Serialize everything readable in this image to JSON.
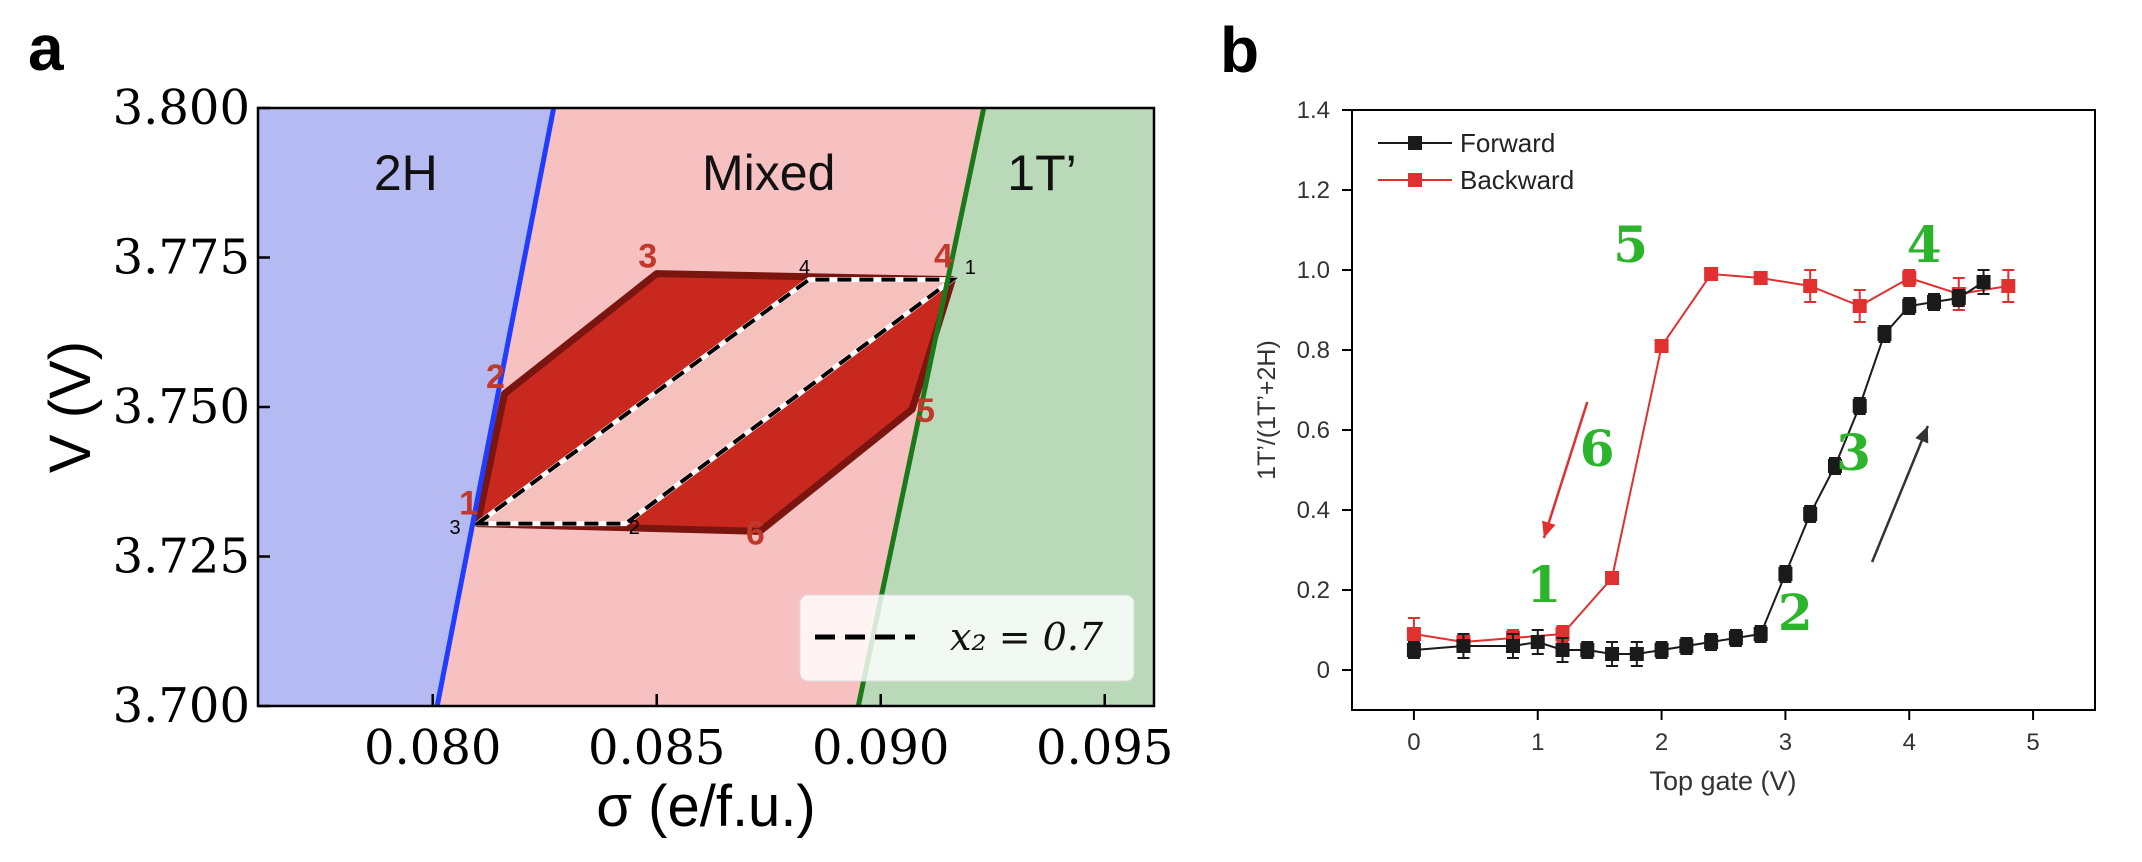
{
  "figure": {
    "panel_a_letter": "a",
    "panel_b_letter": "b"
  },
  "chart_data": [
    {
      "type": "area",
      "panel": "a",
      "xlabel": "σ (e/f.u.)",
      "ylabel": "V (V)",
      "xlim": [
        0.0761,
        0.0961
      ],
      "ylim": [
        3.7,
        3.8
      ],
      "x_ticks": [
        0.08,
        0.085,
        0.09,
        0.095
      ],
      "x_tick_labels": [
        "0.080",
        "0.085",
        "0.090",
        "0.095"
      ],
      "y_ticks": [
        3.7,
        3.725,
        3.75,
        3.775,
        3.8
      ],
      "y_tick_labels": [
        "3.700",
        "3.725",
        "3.750",
        "3.775",
        "3.800"
      ],
      "regions": [
        {
          "name": "2H",
          "color": "#b5baf2"
        },
        {
          "name": "Mixed",
          "color": "#f8c1c1"
        },
        {
          "name": "1T’",
          "color": "#b9d9b8"
        }
      ],
      "boundaries": [
        {
          "color": "#1f3cff",
          "points": [
            [
              0.0801,
              3.7
            ],
            [
              0.0827,
              3.8
            ]
          ]
        },
        {
          "color": "#1a7a1a",
          "points": [
            [
              0.0895,
              3.7
            ],
            [
              0.0923,
              3.8
            ]
          ]
        }
      ],
      "loop": {
        "fill": "#c8281e",
        "edge": "#7a1510",
        "outer": [
          [
            0.081,
            3.7305
          ],
          [
            0.0816,
            3.7522
          ],
          [
            0.085,
            3.7723
          ],
          [
            0.0916,
            3.7713
          ],
          [
            0.0907,
            3.7496
          ],
          [
            0.0873,
            3.7292
          ]
        ],
        "inner_dashed": [
          [
            0.081,
            3.7305
          ],
          [
            0.0884,
            3.7713
          ],
          [
            0.0916,
            3.7713
          ],
          [
            0.0843,
            3.7305
          ]
        ]
      },
      "point_labels": [
        {
          "text": "1",
          "x": 0.0808,
          "y": 3.732
        },
        {
          "text": "2",
          "x": 0.0814,
          "y": 3.7532
        },
        {
          "text": "3",
          "x": 0.0848,
          "y": 3.7733
        },
        {
          "text": "4",
          "x": 0.0914,
          "y": 3.7733
        },
        {
          "text": "5",
          "x": 0.091,
          "y": 3.7475
        },
        {
          "text": "6",
          "x": 0.0872,
          "y": 3.727
        }
      ],
      "small_labels": [
        {
          "text": "1",
          "x": 0.092,
          "y": 3.7722
        },
        {
          "text": "2",
          "x": 0.0845,
          "y": 3.7288
        },
        {
          "text": "3",
          "x": 0.0805,
          "y": 3.7288
        },
        {
          "text": "4",
          "x": 0.0883,
          "y": 3.7722
        }
      ],
      "legend": {
        "label": "x₂ = 0.7",
        "style": "dashed",
        "position": "bottom-right"
      }
    },
    {
      "type": "line",
      "panel": "b",
      "xlabel": "Top gate (V)",
      "ylabel": "1T’/(1T’+2H)",
      "xlim": [
        -0.5,
        5.5
      ],
      "ylim": [
        -0.1,
        1.4
      ],
      "x_ticks": [
        0,
        1,
        2,
        3,
        4,
        5
      ],
      "x_tick_labels": [
        "0",
        "1",
        "2",
        "3",
        "4",
        "5"
      ],
      "y_ticks": [
        0,
        0.2,
        0.4,
        0.6,
        0.8,
        1.0,
        1.2,
        1.4
      ],
      "y_tick_labels": [
        "0",
        "0.2",
        "0.4",
        "0.6",
        "0.8",
        "1.0",
        "1.2",
        "1.4"
      ],
      "legend_position": "top-left",
      "series": [
        {
          "name": "Forward",
          "color": "#1a1a1a",
          "x": [
            0,
            0.4,
            0.8,
            1.0,
            1.2,
            1.4,
            1.6,
            1.8,
            2.0,
            2.2,
            2.4,
            2.6,
            2.8,
            3.0,
            3.2,
            3.4,
            3.6,
            3.8,
            4.0,
            4.2,
            4.4,
            4.6
          ],
          "y": [
            0.05,
            0.06,
            0.06,
            0.07,
            0.05,
            0.05,
            0.04,
            0.04,
            0.05,
            0.06,
            0.07,
            0.08,
            0.09,
            0.24,
            0.39,
            0.51,
            0.66,
            0.84,
            0.91,
            0.92,
            0.93,
            0.97
          ],
          "err": [
            0.02,
            0.03,
            0.03,
            0.03,
            0.03,
            0.02,
            0.03,
            0.03,
            0.02,
            0.02,
            0.02,
            0.02,
            0.02,
            0.02,
            0.02,
            0.02,
            0.02,
            0.02,
            0.02,
            0.02,
            0.02,
            0.03
          ]
        },
        {
          "name": "Backward",
          "color": "#e03030",
          "x": [
            0,
            0.4,
            0.8,
            1.2,
            1.6,
            2.0,
            2.4,
            2.8,
            3.2,
            3.6,
            4.0,
            4.4,
            4.8
          ],
          "y": [
            0.09,
            0.07,
            0.08,
            0.09,
            0.23,
            0.81,
            0.99,
            0.98,
            0.96,
            0.91,
            0.98,
            0.94,
            0.96
          ],
          "err": [
            0.04,
            0.02,
            0.02,
            0.02,
            0.01,
            0.01,
            0.01,
            0.01,
            0.04,
            0.04,
            0.02,
            0.04,
            0.04
          ]
        }
      ],
      "annotations": [
        {
          "text": "1",
          "x": 1.05,
          "y": 0.17,
          "color": "#2cb52c"
        },
        {
          "text": "2",
          "x": 3.08,
          "y": 0.1,
          "color": "#2cb52c"
        },
        {
          "text": "3",
          "x": 3.55,
          "y": 0.5,
          "color": "#2cb52c"
        },
        {
          "text": "4",
          "x": 4.12,
          "y": 1.02,
          "color": "#2cb52c"
        },
        {
          "text": "5",
          "x": 1.75,
          "y": 1.02,
          "color": "#2cb52c"
        },
        {
          "text": "6",
          "x": 1.48,
          "y": 0.51,
          "color": "#2cb52c"
        }
      ],
      "arrows": [
        {
          "from": [
            1.4,
            0.67
          ],
          "to": [
            1.05,
            0.33
          ],
          "color": "#e03030"
        },
        {
          "from": [
            3.7,
            0.27
          ],
          "to": [
            4.15,
            0.61
          ],
          "color": "#333333"
        }
      ]
    }
  ]
}
